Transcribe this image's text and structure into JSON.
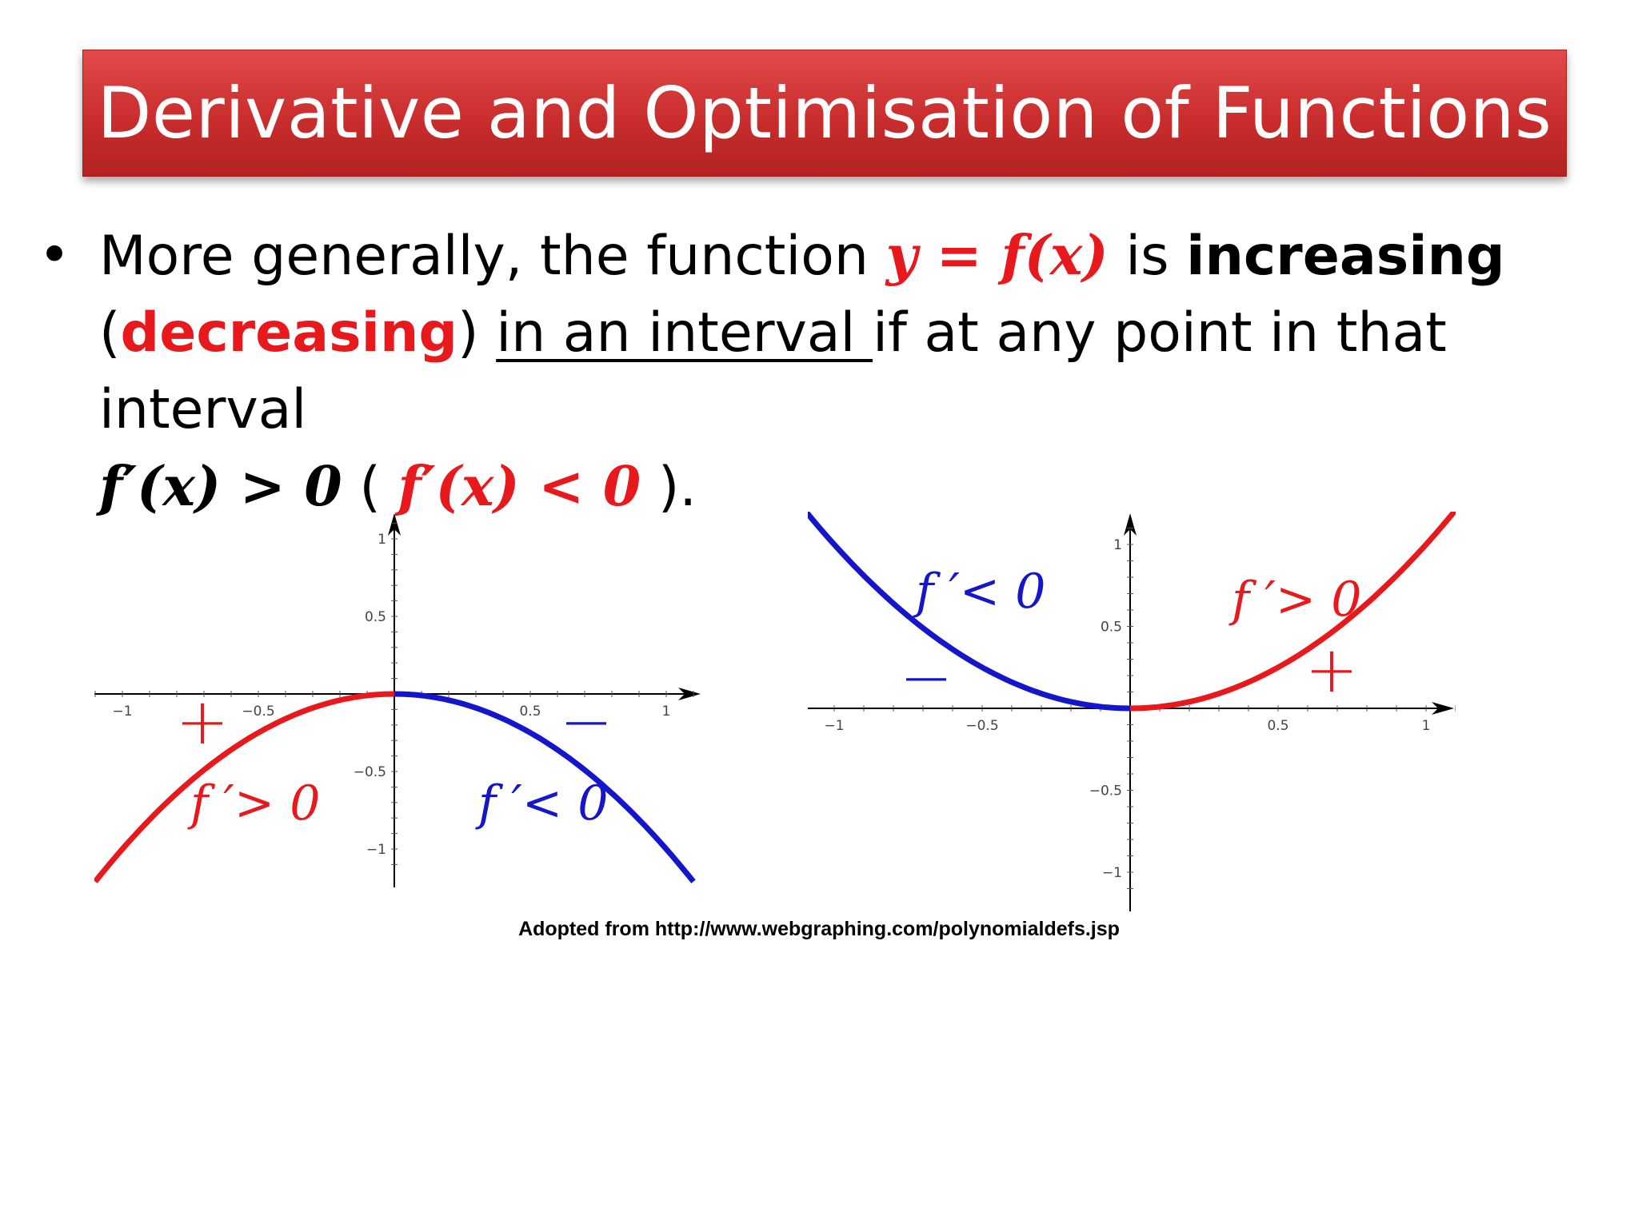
{
  "title": "Derivative and Optimisation of Functions",
  "bullet": {
    "symbol": "•",
    "t1": "More generally, the function ",
    "m1": "y = f(x)",
    "t2": " is ",
    "t3": "increasing",
    "t4": "(",
    "t5": "decreasing",
    "t6": ") ",
    "t7": "in an interval ",
    "t8": "if at any point in that interval",
    "m2": "f′(x) > 0",
    "t9": " ( ",
    "m3": "f′(x) < 0",
    "t10": " )."
  },
  "colors": {
    "title_bg": "#c92d2d",
    "increasing": "#e8191c",
    "decreasing": "#1515cc"
  },
  "chart_data": [
    {
      "type": "line",
      "function": "y = -x^2",
      "xlim": [
        -1.1,
        1.1
      ],
      "ylim": [
        -1.2,
        1.2
      ],
      "xticks": [
        "−1",
        "−0.5",
        "0.5",
        "1"
      ],
      "yticks": [
        "1",
        "0.5",
        "−0.5",
        "−1"
      ],
      "series": [
        {
          "x": [
            -1.1,
            -1.0,
            -0.8,
            -0.6,
            -0.4,
            -0.2,
            0.0
          ],
          "y": [
            -1.21,
            -1.0,
            -0.64,
            -0.36,
            -0.16,
            -0.04,
            0.0
          ],
          "color": "#e8191c"
        },
        {
          "x": [
            0.0,
            0.2,
            0.4,
            0.6,
            0.8,
            1.0,
            1.1
          ],
          "y": [
            0.0,
            -0.04,
            -0.16,
            -0.36,
            -0.64,
            -1.0,
            -1.21
          ],
          "color": "#1515cc"
        }
      ],
      "annotations": {
        "left_sign": "+",
        "left_label": "f ′> 0",
        "right_sign": "−",
        "right_label": "f ′< 0"
      }
    },
    {
      "type": "line",
      "function": "y = x^2",
      "xlim": [
        -1.1,
        1.1
      ],
      "ylim": [
        -1.2,
        1.2
      ],
      "xticks": [
        "−1",
        "−0.5",
        "0.5",
        "1"
      ],
      "yticks": [
        "1",
        "0.5",
        "−0.5",
        "−1"
      ],
      "series": [
        {
          "x": [
            -1.1,
            -1.0,
            -0.8,
            -0.6,
            -0.4,
            -0.2,
            0.0
          ],
          "y": [
            1.21,
            1.0,
            0.64,
            0.36,
            0.16,
            0.04,
            0.0
          ],
          "color": "#1515cc"
        },
        {
          "x": [
            0.0,
            0.2,
            0.4,
            0.6,
            0.8,
            1.0,
            1.1
          ],
          "y": [
            0.0,
            0.04,
            0.16,
            0.36,
            0.64,
            1.0,
            1.21
          ],
          "color": "#e8191c"
        }
      ],
      "annotations": {
        "left_sign": "−",
        "left_label": "f ′< 0",
        "right_sign": "+",
        "right_label": "f ′> 0"
      }
    }
  ],
  "caption": "Adopted from http://www.webgraphing.com/polynomialdefs.jsp"
}
